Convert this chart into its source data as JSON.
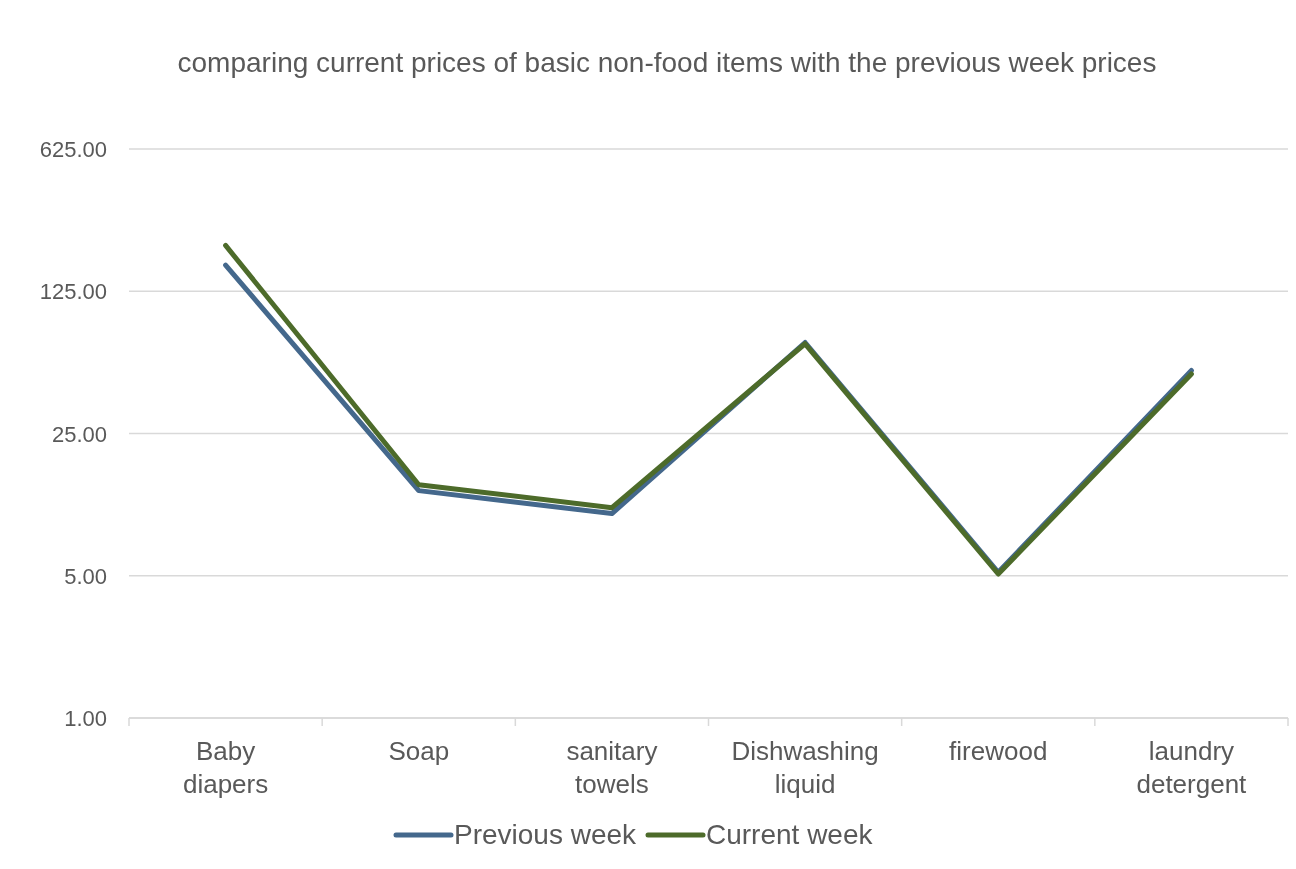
{
  "chart_data": {
    "type": "line",
    "title": "comparing current prices of basic non-food items with the previous week prices",
    "categories": [
      "Baby diapers",
      "Soap",
      "sanitary towels",
      "Dishwashing liquid",
      "firewood",
      "laundry detergent"
    ],
    "series": [
      {
        "name": "Previous week",
        "color": "#44688c",
        "values": [
          168,
          13.1,
          10.1,
          70,
          5.2,
          51
        ]
      },
      {
        "name": "Current week",
        "color": "#4d6b2a",
        "values": [
          210,
          14,
          10.8,
          69,
          5.1,
          49
        ]
      }
    ],
    "log": "y",
    "ylim": [
      1,
      625
    ],
    "yticks": [
      {
        "value": 1,
        "label": "1.00"
      },
      {
        "value": 5,
        "label": "5.00"
      },
      {
        "value": 25,
        "label": "25.00"
      },
      {
        "value": 125,
        "label": "125.00"
      },
      {
        "value": 625,
        "label": "625.00"
      }
    ],
    "grid": "y",
    "legend": "bottom",
    "marker": "none",
    "line_style": "solid"
  }
}
